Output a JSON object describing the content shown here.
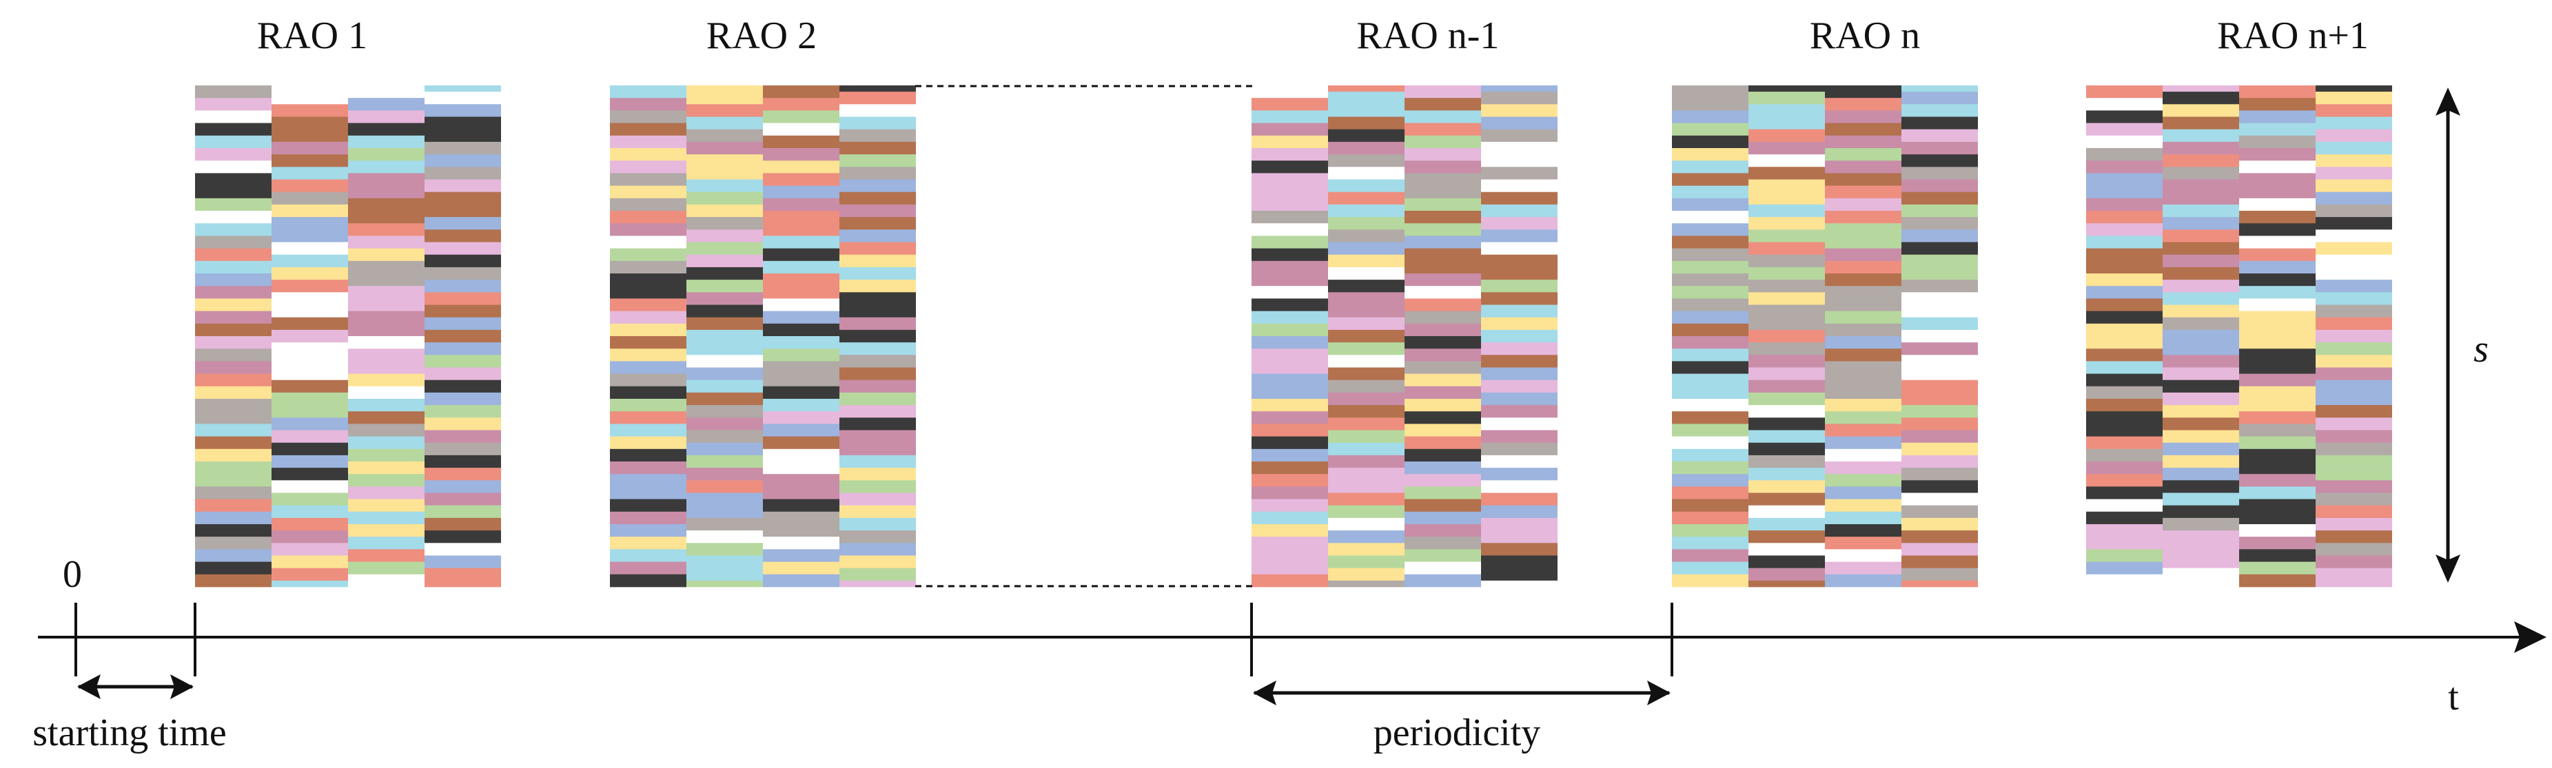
{
  "title_labels": [
    "RAO 1",
    "RAO 2",
    "RAO n-1",
    "RAO n",
    "RAO n+1"
  ],
  "origin_label": "0",
  "starting_time_label": "starting time",
  "periodicity_label": "periodicity",
  "time_axis_label": "t",
  "vertical_axis_label": "s",
  "blocks": [
    {
      "label_index": 0,
      "seed": 3
    },
    {
      "label_index": 1,
      "seed": 11
    },
    {
      "label_index": 2,
      "seed": 19
    },
    {
      "label_index": 3,
      "seed": 27
    },
    {
      "label_index": 4,
      "seed": 35
    }
  ],
  "palette": {
    "blue": "#9cb4de",
    "brown": "#b3714e",
    "pink": "#e6b8dc",
    "gray": "#b1aaa7",
    "black": "#3a3a3a",
    "green": "#b6d89e",
    "salmon": "#ee8e7f",
    "cyan": "#a3dbe8",
    "yellow": "#fde394",
    "mauve": "#c98da8",
    "white": "#ffffff"
  },
  "colors": {
    "axis": "#111111",
    "text": "#111111"
  }
}
